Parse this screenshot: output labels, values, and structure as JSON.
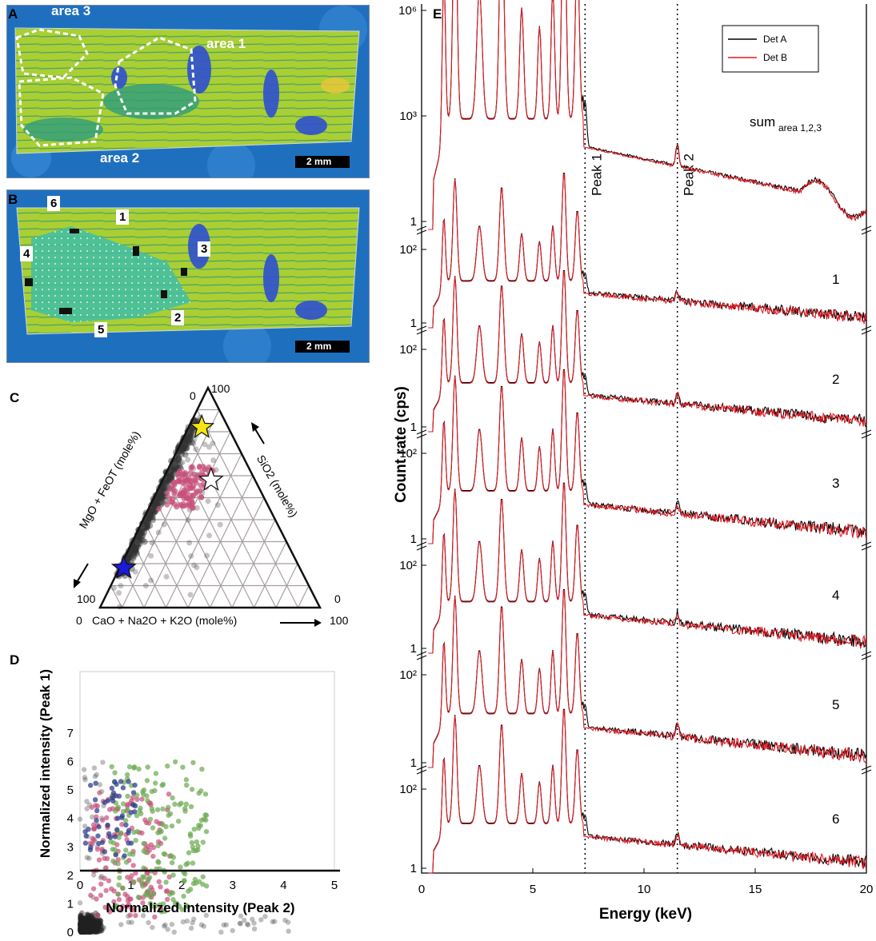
{
  "panels": {
    "A": {
      "label": "A",
      "regions": [
        "area 3",
        "area 1",
        "area 2"
      ],
      "scalebar": "2 mm"
    },
    "B": {
      "label": "B",
      "points": [
        "6",
        "1",
        "4",
        "3",
        "2",
        "5"
      ],
      "scalebar": "2 mm"
    },
    "C": {
      "label": "C",
      "left_axis_label": "MgO + FeOT (mole%)",
      "right_axis_label": "SiO2 (mole%)",
      "bottom_axis_label": "CaO + Na2O + K2O (mole%)",
      "corner_ticks": {
        "top_left": "0",
        "top_right": "100",
        "bottom_left_upper": "100",
        "bottom_left_lower": "0",
        "right_upper": "0",
        "right_lower": "100"
      }
    },
    "D": {
      "label": "D"
    },
    "E": {
      "label": "E"
    }
  },
  "colors": {
    "det_a": "#000000",
    "det_b": "#e01b24",
    "pink": "#c8507a",
    "green": "#6aa84f",
    "navy": "#2d3f8c",
    "star_blue": "#1a1adc",
    "star_yellow": "#f5e416",
    "map_bg": "#1f6fbf",
    "map_green": "#a8cf2e"
  },
  "chart_data": [
    {
      "panel": "C",
      "type": "scatter",
      "title": "",
      "axes": [
        "CaO + Na2O + K2O (mole%)",
        "SiO2 (mole%)",
        "MgO + FeOT (mole%)"
      ],
      "ternary": true,
      "grid": true,
      "markers": [
        {
          "name": "blue-star",
          "sio2": 18,
          "other": 2
        },
        {
          "name": "yellow-star",
          "sio2": 82,
          "other": 6
        },
        {
          "name": "white-star",
          "sio2": 58,
          "other": 22
        }
      ]
    },
    {
      "panel": "D",
      "type": "scatter",
      "xlabel": "Normalized intensity (Peak 2)",
      "ylabel": "Normalized intensity (Peak 1)",
      "xlim": [
        0,
        5
      ],
      "ylim": [
        0,
        7
      ],
      "xticks": [
        "0",
        "1",
        "2",
        "3",
        "4",
        "5"
      ],
      "yticks": [
        "0",
        "1",
        "2",
        "3",
        "4",
        "5",
        "6",
        "7"
      ],
      "series_colors": [
        "black",
        "pink",
        "green",
        "navy"
      ]
    },
    {
      "panel": "E",
      "type": "line",
      "xlabel": "Energy (keV)",
      "ylabel": "Count rate (cps)",
      "xlim": [
        0,
        20
      ],
      "xticks": [
        "0",
        "5",
        "10",
        "15",
        "20"
      ],
      "log_y": true,
      "top_yticks": [
        "1",
        "10³",
        "10⁶"
      ],
      "stack_yticks": [
        "1",
        "10²"
      ],
      "legend": [
        "Det A",
        "Det B"
      ],
      "legend_position": "top-right",
      "peaks": [
        {
          "label": "Peak 1",
          "energy": 7.35
        },
        {
          "label": "Peak 2",
          "energy": 11.5
        }
      ],
      "spectra": [
        {
          "label": "sum",
          "sub": "area 1,2,3"
        },
        {
          "label": "1"
        },
        {
          "label": "2"
        },
        {
          "label": "3"
        },
        {
          "label": "4"
        },
        {
          "label": "5"
        },
        {
          "label": "6"
        }
      ]
    }
  ]
}
